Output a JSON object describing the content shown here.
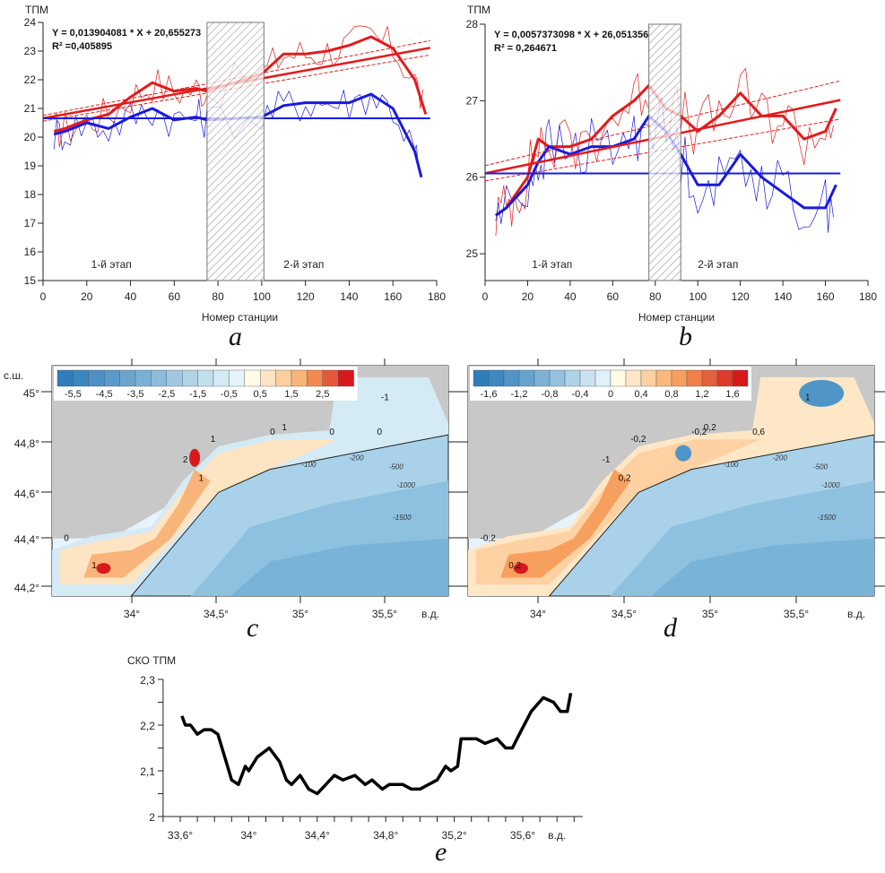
{
  "panels": {
    "a": "a",
    "b": "b",
    "c": "c",
    "d": "d",
    "e": "e"
  },
  "colors": {
    "red": "#e41a1c",
    "blue": "#1a1adb",
    "land": "#c8c8c8"
  },
  "chart_data": [
    {
      "id": "a",
      "type": "line",
      "ylabel": "ТПМ",
      "xlabel": "Номер станции",
      "xlim": [
        0,
        180
      ],
      "ylim": [
        15,
        24
      ],
      "xticks": [
        0,
        20,
        40,
        60,
        80,
        100,
        120,
        140,
        160,
        180
      ],
      "yticks": [
        15,
        16,
        17,
        18,
        19,
        20,
        21,
        22,
        23,
        24
      ],
      "equation": "Y = 0,013904081 * X + 20,655273",
      "r2": "R² =0,405895",
      "regression": {
        "slope": 0.013904081,
        "intercept": 20.655273
      },
      "mean_line": 20.655,
      "gap": [
        75,
        101
      ],
      "stage1": "1-й этап",
      "stage2": "2-й этап",
      "series": [
        {
          "color": "red",
          "x": [
            5,
            10,
            20,
            30,
            40,
            50,
            60,
            70,
            75,
            100,
            110,
            120,
            130,
            140,
            150,
            160,
            170,
            175
          ],
          "y": [
            20.2,
            20.3,
            20.6,
            20.8,
            21.4,
            21.9,
            21.6,
            21.7,
            21.6,
            22.2,
            22.9,
            22.9,
            23.0,
            23.2,
            23.5,
            23.1,
            22.0,
            20.8
          ]
        },
        {
          "color": "blue",
          "x": [
            5,
            10,
            20,
            30,
            40,
            50,
            60,
            70,
            75,
            100,
            110,
            120,
            130,
            140,
            150,
            160,
            170,
            173
          ],
          "y": [
            20.1,
            20.2,
            20.5,
            20.3,
            20.7,
            21.0,
            20.6,
            20.7,
            20.6,
            20.7,
            21.1,
            21.2,
            21.2,
            21.2,
            21.5,
            21.0,
            19.5,
            18.6
          ]
        }
      ]
    },
    {
      "id": "b",
      "type": "line",
      "ylabel": "ТПМ",
      "xlabel": "Номер станции",
      "xlim": [
        0,
        180
      ],
      "ylim": [
        24.65,
        28
      ],
      "xticks": [
        0,
        20,
        40,
        60,
        80,
        100,
        120,
        140,
        160,
        180
      ],
      "yticks": [
        25,
        26,
        27,
        28
      ],
      "equation": "Y = 0,0057373098 * X + 26,051356",
      "r2": "R² = 0,264671",
      "regression": {
        "slope": 0.0057373098,
        "intercept": 26.051356
      },
      "mean_line": 26.05,
      "gap": [
        77,
        92
      ],
      "stage1": "1-й этап",
      "stage2": "2-й этап",
      "series": [
        {
          "color": "red",
          "x": [
            5,
            10,
            15,
            20,
            25,
            30,
            40,
            50,
            60,
            70,
            77,
            85,
            92,
            100,
            110,
            120,
            130,
            140,
            150,
            160,
            165
          ],
          "y": [
            25.5,
            25.6,
            25.8,
            26.0,
            26.5,
            26.4,
            26.4,
            26.5,
            26.8,
            27.0,
            27.2,
            26.9,
            26.8,
            26.6,
            26.8,
            27.1,
            26.8,
            26.8,
            26.5,
            26.6,
            26.9
          ]
        },
        {
          "color": "blue",
          "x": [
            5,
            10,
            20,
            25,
            30,
            40,
            50,
            60,
            70,
            77,
            85,
            92,
            100,
            110,
            120,
            130,
            140,
            150,
            160,
            165
          ],
          "y": [
            25.5,
            25.6,
            25.9,
            26.2,
            26.4,
            26.3,
            26.4,
            26.4,
            26.5,
            26.8,
            26.6,
            26.3,
            25.9,
            25.9,
            26.3,
            26.0,
            25.8,
            25.6,
            25.6,
            25.9
          ]
        }
      ]
    },
    {
      "id": "e",
      "type": "line",
      "ylabel": "СКО ТПМ",
      "xunit": "в.д.",
      "xlim": [
        33.5,
        35.95
      ],
      "ylim": [
        2,
        2.3
      ],
      "xticks": [
        "33,6°",
        "34°",
        "34,4°",
        "34,8°",
        "35,2°",
        "35,6°"
      ],
      "xtickvals": [
        33.6,
        34,
        34.4,
        34.8,
        35.2,
        35.6
      ],
      "yticks": [
        "2",
        "2,1",
        "2,2",
        "2,3"
      ],
      "ytickvals": [
        2,
        2.1,
        2.2,
        2.3
      ],
      "x": [
        33.61,
        33.63,
        33.66,
        33.7,
        33.74,
        33.78,
        33.82,
        33.86,
        33.9,
        33.94,
        33.98,
        34.0,
        34.05,
        34.12,
        34.18,
        34.22,
        34.25,
        34.3,
        34.35,
        34.4,
        34.45,
        34.5,
        34.55,
        34.62,
        34.68,
        34.72,
        34.78,
        34.82,
        34.9,
        34.95,
        35.0,
        35.05,
        35.1,
        35.15,
        35.18,
        35.22,
        35.24,
        35.28,
        35.33,
        35.38,
        35.45,
        35.5,
        35.54,
        35.58,
        35.65,
        35.72,
        35.78,
        35.82,
        35.86,
        35.88
      ],
      "y": [
        2.22,
        2.2,
        2.2,
        2.18,
        2.19,
        2.19,
        2.18,
        2.13,
        2.08,
        2.07,
        2.11,
        2.1,
        2.13,
        2.15,
        2.12,
        2.08,
        2.07,
        2.09,
        2.06,
        2.05,
        2.07,
        2.09,
        2.08,
        2.09,
        2.07,
        2.08,
        2.06,
        2.07,
        2.07,
        2.06,
        2.06,
        2.07,
        2.08,
        2.11,
        2.1,
        2.11,
        2.17,
        2.17,
        2.17,
        2.16,
        2.17,
        2.15,
        2.15,
        2.18,
        2.23,
        2.26,
        2.25,
        2.23,
        2.23,
        2.27
      ]
    }
  ],
  "maps": {
    "lat_label": "с.ш.",
    "lon_unit": "в.д.",
    "lat_ticks": [
      "45°",
      "44,8°",
      "44,6°",
      "44,4°",
      "44,2°"
    ],
    "lon_ticks": [
      "34°",
      "34,5°",
      "35°",
      "35,5°"
    ],
    "depths": [
      "-100",
      "-200",
      "-500",
      "-1000",
      "-1500"
    ],
    "c": {
      "legend": [
        "-5,5",
        "-4,5",
        "-3,5",
        "-2,5",
        "-1,5",
        "-0,5",
        "0,5",
        "1,5",
        "2,5"
      ],
      "swatches": [
        "#2f7dba",
        "#3a86c0",
        "#4a90c6",
        "#5a9acb",
        "#6aa5d0",
        "#7bb0d6",
        "#8dbbdc",
        "#9fc7e2",
        "#b0d3e8",
        "#c2dfee",
        "#d4eaf4",
        "#e5f4fa",
        "#fffbe6",
        "#fde5c4",
        "#fccf9f",
        "#f9b47a",
        "#f2894f",
        "#e6573a",
        "#d7191c"
      ],
      "contours": [
        "0",
        "1",
        "1",
        "2",
        "1",
        "0",
        "0",
        "1",
        "-1",
        "0"
      ]
    },
    "d": {
      "legend": [
        "-1,6",
        "-1,2",
        "-0,8",
        "-0,4",
        "0",
        "0,4",
        "0,8",
        "1,2",
        "1,6"
      ],
      "swatches": [
        "#2f7dba",
        "#3d88c1",
        "#5095c8",
        "#66a3cf",
        "#7db2d7",
        "#95c2df",
        "#aed2e8",
        "#c8e2f0",
        "#e0f1f8",
        "#fffbe6",
        "#fee7c6",
        "#fdd1a2",
        "#fbb77d",
        "#f79f5e",
        "#f08148",
        "#e4603a",
        "#dd3b2b",
        "#d7191c"
      ],
      "contours": [
        "-0,2",
        "0,2",
        "0,2",
        "-1",
        "-0,2",
        "-0,2",
        "0,6",
        "0,2",
        "1"
      ]
    }
  }
}
